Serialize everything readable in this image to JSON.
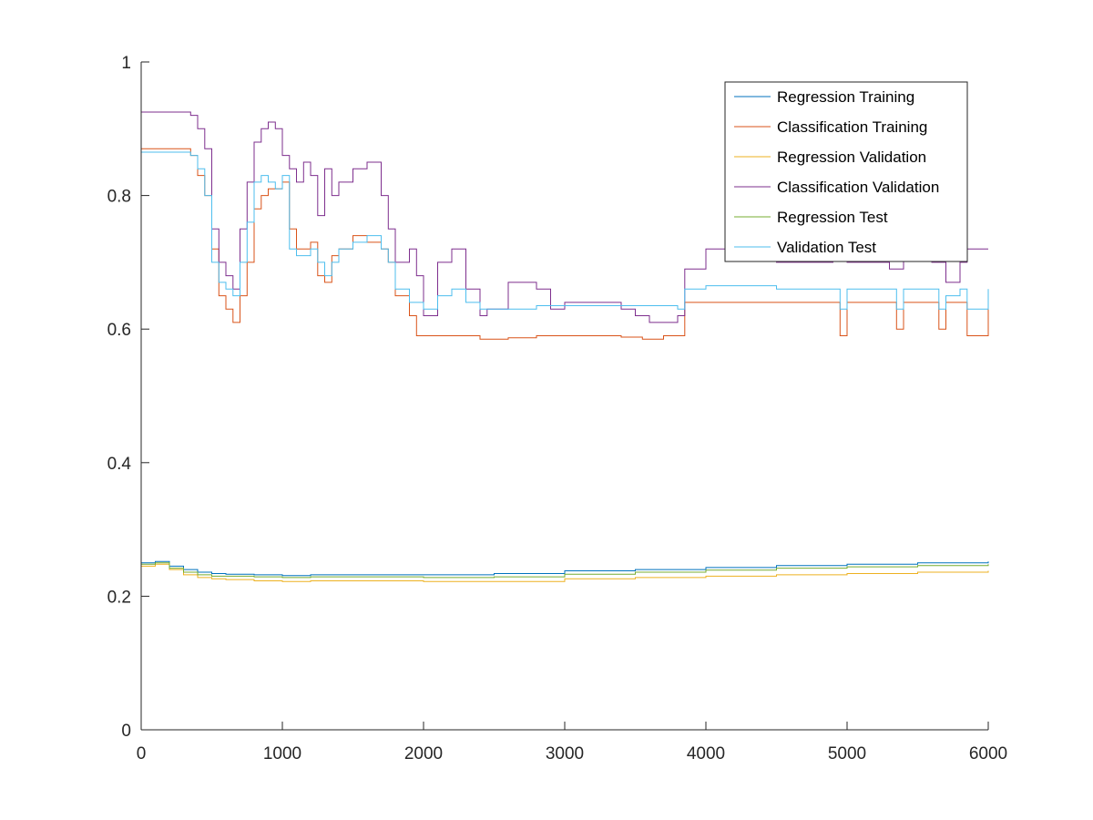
{
  "chart_data": {
    "type": "line",
    "title": "",
    "xlabel": "",
    "ylabel": "",
    "xlim": [
      0,
      6000
    ],
    "ylim": [
      0,
      1
    ],
    "x_ticks": [
      0,
      1000,
      2000,
      3000,
      4000,
      5000,
      6000
    ],
    "x_tick_labels": [
      "0",
      "1000",
      "2000",
      "3000",
      "4000",
      "5000",
      "6000"
    ],
    "y_ticks": [
      0,
      0.2,
      0.4,
      0.6,
      0.8,
      1
    ],
    "y_tick_labels": [
      "0",
      "0.2",
      "0.4",
      "0.6",
      "0.8",
      "1"
    ],
    "grid": false,
    "legend_position": "top-right",
    "series": [
      {
        "name": "Regression Training",
        "color": "#0072BD",
        "x": [
          0,
          100,
          200,
          300,
          400,
          500,
          600,
          800,
          1000,
          1200,
          1500,
          2000,
          2500,
          3000,
          3500,
          4000,
          4500,
          5000,
          5500,
          6000
        ],
        "y": [
          0.25,
          0.252,
          0.245,
          0.24,
          0.236,
          0.234,
          0.233,
          0.232,
          0.231,
          0.232,
          0.232,
          0.232,
          0.234,
          0.238,
          0.24,
          0.243,
          0.246,
          0.248,
          0.25,
          0.252
        ]
      },
      {
        "name": "Classification Training",
        "color": "#D95319",
        "x": [
          0,
          300,
          350,
          400,
          450,
          500,
          550,
          600,
          650,
          700,
          750,
          800,
          850,
          900,
          1000,
          1050,
          1100,
          1200,
          1250,
          1300,
          1350,
          1400,
          1500,
          1600,
          1700,
          1750,
          1800,
          1900,
          1950,
          2100,
          2300,
          2400,
          2600,
          2800,
          3000,
          3200,
          3400,
          3550,
          3600,
          3700,
          3800,
          3850,
          4000,
          4500,
          4900,
          4950,
          5000,
          5300,
          5350,
          5400,
          5600,
          5650,
          5700,
          5800,
          5850,
          6000
        ],
        "y": [
          0.87,
          0.87,
          0.86,
          0.83,
          0.8,
          0.72,
          0.65,
          0.63,
          0.61,
          0.65,
          0.7,
          0.78,
          0.8,
          0.81,
          0.82,
          0.75,
          0.72,
          0.73,
          0.68,
          0.67,
          0.71,
          0.72,
          0.74,
          0.73,
          0.72,
          0.7,
          0.65,
          0.62,
          0.59,
          0.59,
          0.59,
          0.585,
          0.587,
          0.59,
          0.59,
          0.59,
          0.588,
          0.585,
          0.585,
          0.59,
          0.59,
          0.64,
          0.64,
          0.64,
          0.64,
          0.59,
          0.64,
          0.64,
          0.6,
          0.64,
          0.64,
          0.6,
          0.64,
          0.64,
          0.59,
          0.64
        ]
      },
      {
        "name": "Regression Validation",
        "color": "#EDB120",
        "x": [
          0,
          100,
          200,
          300,
          400,
          500,
          600,
          800,
          1000,
          1200,
          1500,
          2000,
          2500,
          3000,
          3500,
          4000,
          4500,
          5000,
          5500,
          6000
        ],
        "y": [
          0.245,
          0.248,
          0.24,
          0.232,
          0.228,
          0.226,
          0.225,
          0.223,
          0.222,
          0.223,
          0.223,
          0.222,
          0.222,
          0.226,
          0.228,
          0.23,
          0.232,
          0.234,
          0.236,
          0.238
        ]
      },
      {
        "name": "Classification Validation",
        "color": "#7E2F8E",
        "x": [
          0,
          300,
          350,
          400,
          450,
          500,
          550,
          600,
          650,
          700,
          750,
          800,
          850,
          900,
          950,
          1000,
          1050,
          1100,
          1150,
          1200,
          1250,
          1300,
          1350,
          1400,
          1500,
          1600,
          1700,
          1750,
          1800,
          1900,
          1950,
          2000,
          2100,
          2200,
          2300,
          2400,
          2450,
          2600,
          2800,
          2900,
          3000,
          3200,
          3400,
          3500,
          3600,
          3700,
          3800,
          3850,
          4000,
          4200,
          4500,
          4900,
          5000,
          5300,
          5400,
          5600,
          5700,
          5800,
          5850,
          6000
        ],
        "y": [
          0.925,
          0.925,
          0.92,
          0.9,
          0.87,
          0.75,
          0.7,
          0.68,
          0.66,
          0.75,
          0.82,
          0.88,
          0.9,
          0.91,
          0.9,
          0.86,
          0.84,
          0.82,
          0.85,
          0.83,
          0.77,
          0.84,
          0.8,
          0.82,
          0.84,
          0.85,
          0.8,
          0.75,
          0.7,
          0.72,
          0.68,
          0.62,
          0.7,
          0.72,
          0.66,
          0.62,
          0.63,
          0.67,
          0.66,
          0.63,
          0.64,
          0.64,
          0.63,
          0.62,
          0.61,
          0.61,
          0.62,
          0.69,
          0.72,
          0.71,
          0.7,
          0.72,
          0.7,
          0.69,
          0.72,
          0.7,
          0.67,
          0.7,
          0.72,
          0.72
        ]
      },
      {
        "name": "Regression Test",
        "color": "#77AC30",
        "x": [
          0,
          100,
          200,
          300,
          400,
          500,
          600,
          800,
          1000,
          1200,
          1500,
          2000,
          2500,
          3000,
          3500,
          4000,
          4500,
          5000,
          5500,
          6000
        ],
        "y": [
          0.248,
          0.25,
          0.242,
          0.236,
          0.232,
          0.23,
          0.23,
          0.229,
          0.228,
          0.229,
          0.229,
          0.228,
          0.229,
          0.233,
          0.236,
          0.239,
          0.242,
          0.244,
          0.246,
          0.248
        ]
      },
      {
        "name": "Validation Test",
        "color": "#4DBEEE",
        "x": [
          0,
          300,
          350,
          400,
          450,
          500,
          550,
          600,
          650,
          700,
          750,
          800,
          850,
          900,
          950,
          1000,
          1050,
          1100,
          1200,
          1250,
          1300,
          1350,
          1400,
          1500,
          1600,
          1700,
          1750,
          1800,
          1900,
          2000,
          2100,
          2200,
          2300,
          2400,
          2600,
          2800,
          3000,
          3400,
          3600,
          3800,
          3850,
          4000,
          4500,
          4900,
          4950,
          5000,
          5300,
          5350,
          5400,
          5600,
          5650,
          5700,
          5800,
          5850,
          6000
        ],
        "y": [
          0.865,
          0.865,
          0.86,
          0.84,
          0.8,
          0.7,
          0.67,
          0.66,
          0.65,
          0.7,
          0.76,
          0.82,
          0.83,
          0.82,
          0.81,
          0.83,
          0.72,
          0.71,
          0.72,
          0.7,
          0.68,
          0.7,
          0.72,
          0.73,
          0.74,
          0.72,
          0.7,
          0.66,
          0.64,
          0.63,
          0.65,
          0.66,
          0.64,
          0.63,
          0.63,
          0.635,
          0.635,
          0.635,
          0.635,
          0.63,
          0.66,
          0.665,
          0.66,
          0.66,
          0.63,
          0.66,
          0.66,
          0.63,
          0.66,
          0.66,
          0.63,
          0.65,
          0.66,
          0.63,
          0.66
        ]
      }
    ]
  }
}
